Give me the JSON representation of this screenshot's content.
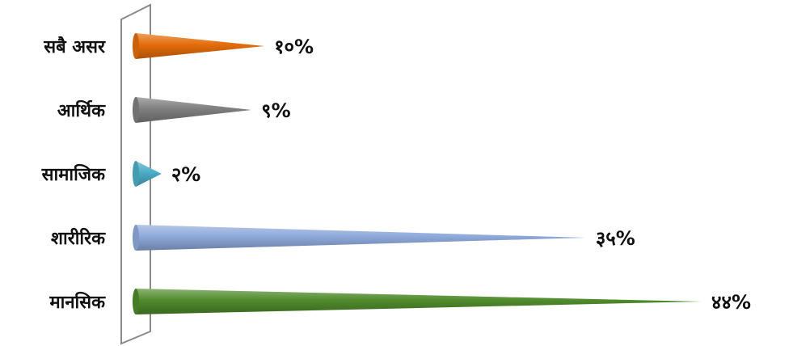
{
  "chart_data": {
    "type": "bar",
    "orientation": "horizontal",
    "bar_shape": "cone",
    "categories": [
      "सबै असर",
      "आर्थिक",
      "सामाजिक",
      "शारीरिक",
      "मानसिक"
    ],
    "values": [
      10,
      9,
      2,
      35,
      44
    ],
    "value_labels": [
      "१०%",
      "९%",
      "२%",
      "३५%",
      "४४%"
    ],
    "colors": [
      "#E36C0A",
      "#7F7F7F",
      "#4BACC6",
      "#8EA9DB",
      "#4F8A2B"
    ],
    "xlim": [
      0,
      44
    ],
    "grid": false,
    "legend": "none"
  }
}
